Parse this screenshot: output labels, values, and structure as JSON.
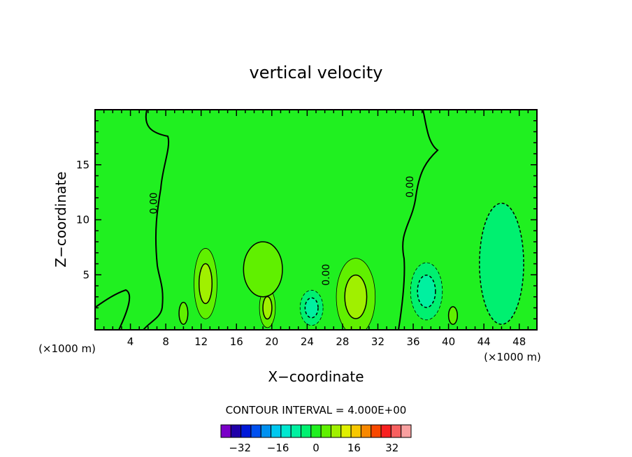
{
  "chart_data": {
    "type": "heatmap",
    "title": "vertical velocity",
    "xlabel": "X−coordinate",
    "ylabel": "Z−coordinate",
    "x_unit_label": "(×1000 m)",
    "x_unit_label_right": "(×1000 m)",
    "xlim": [
      0,
      50
    ],
    "ylim": [
      0,
      20
    ],
    "x_ticks": [
      4,
      8,
      12,
      16,
      20,
      24,
      28,
      32,
      36,
      40,
      44,
      48
    ],
    "y_ticks": [
      5,
      10,
      15
    ],
    "contour_interval_text": "CONTOUR INTERVAL = 4.000E+00",
    "contour_labels": [
      {
        "text": "0.00",
        "x": 7,
        "y": 11.5
      },
      {
        "text": "0.00",
        "x": 26.5,
        "y": 5
      },
      {
        "text": "0.00",
        "x": 36,
        "y": 13
      }
    ],
    "colorbar": {
      "tick_labels": [
        "−32",
        "−16",
        "0",
        "16",
        "32"
      ],
      "tick_values": [
        -32,
        -16,
        0,
        16,
        32
      ],
      "range": [
        -40,
        40
      ],
      "colors": [
        "#7a00c8",
        "#2000a8",
        "#0018d8",
        "#0050f0",
        "#0090f0",
        "#00c8f0",
        "#00e8d0",
        "#00f0a0",
        "#00f070",
        "#20f020",
        "#60f000",
        "#a0f000",
        "#e0f000",
        "#f8c800",
        "#f88800",
        "#f84800",
        "#f82020",
        "#f86060",
        "#f8a0a0"
      ]
    },
    "background_level_color": "#20f020",
    "features": [
      {
        "shape": "ellipse",
        "cx": 12.5,
        "cy": 4.2,
        "rx": 1.3,
        "ry": 3.2,
        "levels": [
          "#60f000",
          "#a0f000"
        ]
      },
      {
        "shape": "ellipse",
        "cx": 19.5,
        "cy": 2.0,
        "rx": 0.9,
        "ry": 1.8,
        "levels": [
          "#60f000",
          "#a0f000"
        ]
      },
      {
        "shape": "ellipse",
        "cx": 29.5,
        "cy": 3.0,
        "rx": 2.2,
        "ry": 3.5,
        "levels": [
          "#60f000",
          "#a0f000"
        ]
      },
      {
        "shape": "ellipse",
        "cx": 19.0,
        "cy": 5.5,
        "rx": 2.2,
        "ry": 2.5,
        "levels": [
          "#60f000"
        ]
      },
      {
        "shape": "ellipse",
        "cx": 24.5,
        "cy": 2.0,
        "rx": 1.3,
        "ry": 1.6,
        "levels": [
          "#00f070",
          "#00f0a0"
        ]
      },
      {
        "shape": "ellipse",
        "cx": 37.5,
        "cy": 3.5,
        "rx": 1.8,
        "ry": 2.6,
        "levels": [
          "#00f070",
          "#00f0a0"
        ]
      },
      {
        "shape": "ellipse",
        "cx": 46.0,
        "cy": 6.0,
        "rx": 2.5,
        "ry": 5.5,
        "levels": [
          "#00f070"
        ]
      },
      {
        "shape": "ellipse",
        "cx": 10.0,
        "cy": 1.5,
        "rx": 0.5,
        "ry": 1.0,
        "levels": [
          "#60f000"
        ]
      },
      {
        "shape": "ellipse",
        "cx": 40.5,
        "cy": 1.3,
        "rx": 0.5,
        "ry": 0.8,
        "levels": [
          "#60f000"
        ]
      }
    ]
  }
}
